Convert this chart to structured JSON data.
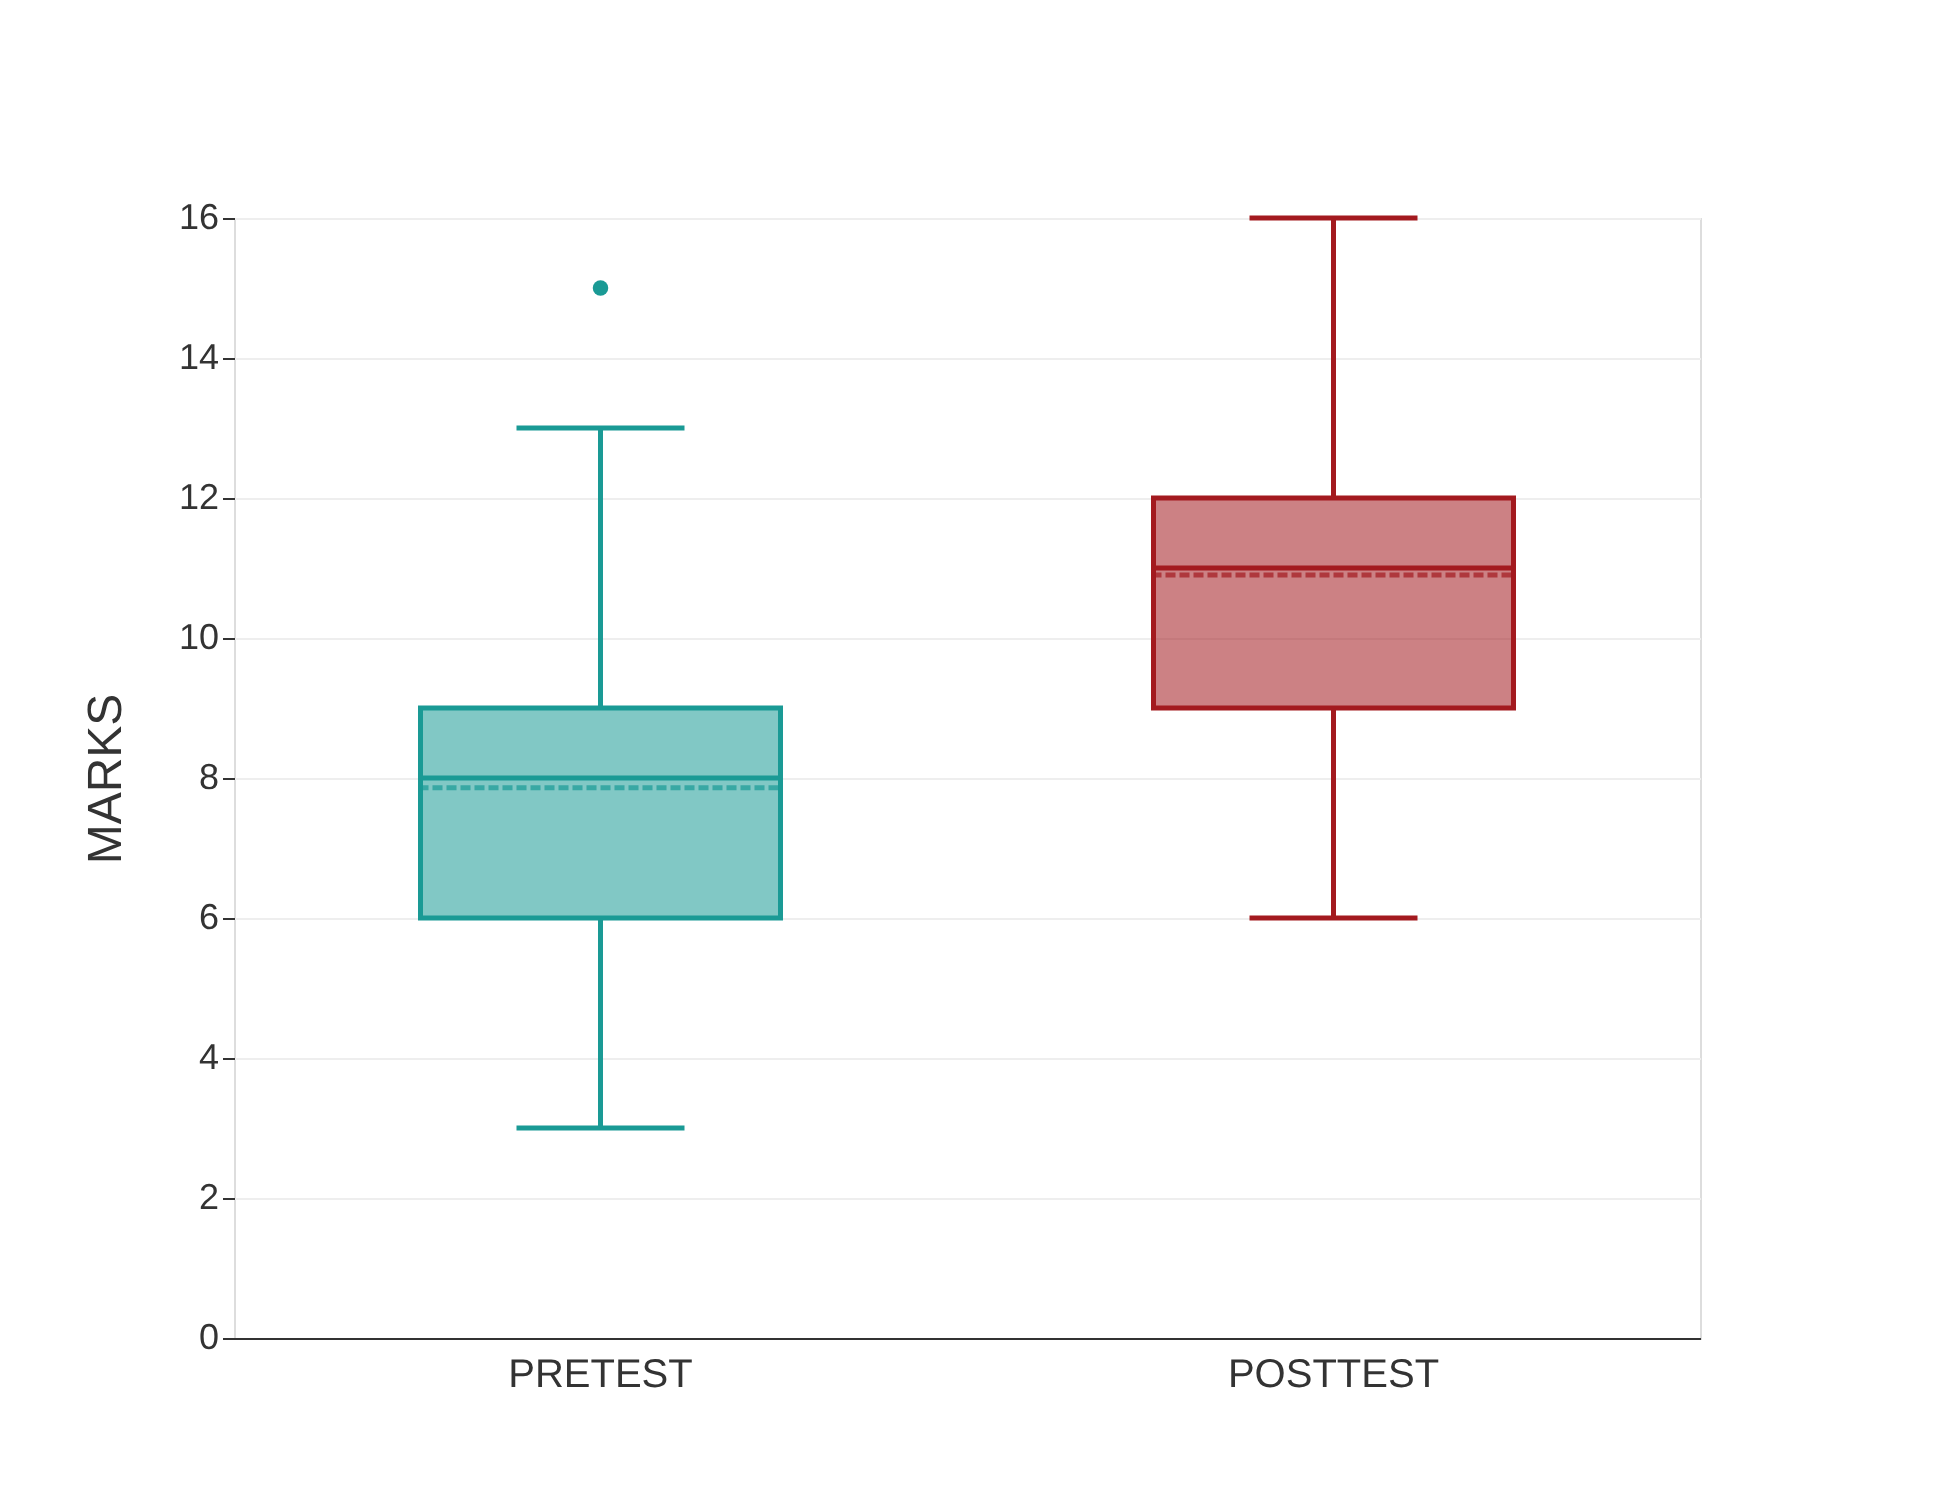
{
  "chart_data": {
    "type": "box",
    "ylabel": "MARKS",
    "categories": [
      "PRETEST",
      "POSTTEST"
    ],
    "boxes": [
      {
        "low": 3,
        "q1": 6,
        "median": 8,
        "q3": 9,
        "high": 13,
        "mean": 7.86,
        "outliers": [
          15
        ]
      },
      {
        "low": 6,
        "q1": 9,
        "median": 11,
        "q3": 12,
        "high": 16,
        "mean": 10.9
      }
    ],
    "colors": [
      "#1a9a95",
      "#a31a1f"
    ],
    "ylim": [
      0,
      16
    ],
    "yticks": [
      0,
      2,
      4,
      6,
      8,
      10,
      12,
      14,
      16
    ],
    "grid": "y",
    "legend": false
  }
}
